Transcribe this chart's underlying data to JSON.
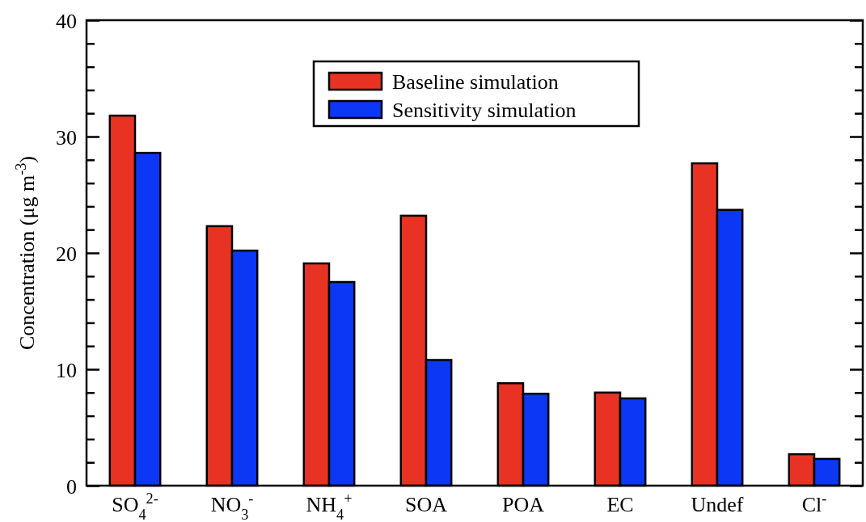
{
  "chart_data": {
    "type": "bar",
    "ylabel": "Concentration (μg m$^{-3}$)",
    "categories": [
      "SO$_{4}$$^{2-}$",
      "NO$_{3}$$^{-}$",
      "NH$_{4}$$^{+}$",
      "SOA",
      "POA",
      "EC",
      "Undef",
      "Cl$^{-}$"
    ],
    "series": [
      {
        "name": "Baseline simulation",
        "color": "#e83324",
        "values": [
          31.8,
          22.3,
          19.1,
          23.2,
          8.8,
          8.0,
          27.7,
          2.7
        ]
      },
      {
        "name": "Sensitivity simulation",
        "color": "#0c37f5",
        "values": [
          28.6,
          20.2,
          17.5,
          10.8,
          7.9,
          7.5,
          23.7,
          2.3
        ]
      }
    ],
    "ylim": [
      0,
      40
    ],
    "yticks": [
      0,
      {
        "value": 2,
        "label": null
      },
      {
        "value": 4,
        "label": null
      },
      {
        "value": 6,
        "label": null
      },
      {
        "value": 8,
        "label": null
      },
      10,
      {
        "value": 12,
        "label": null
      },
      {
        "value": 14,
        "label": null
      },
      {
        "value": 16,
        "label": null
      },
      {
        "value": 18,
        "label": null
      },
      20,
      {
        "value": 22,
        "label": null
      },
      {
        "value": 24,
        "label": null
      },
      {
        "value": 26,
        "label": null
      },
      {
        "value": 28,
        "label": null
      },
      30,
      {
        "value": 32,
        "label": null
      },
      {
        "value": 34,
        "label": null
      },
      {
        "value": 36,
        "label": null
      },
      {
        "value": 38,
        "label": null
      },
      40
    ],
    "legend": "top",
    "grid": false
  }
}
